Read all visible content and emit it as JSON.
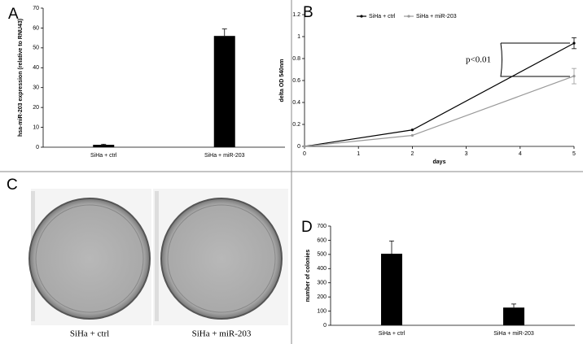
{
  "chart_data": [
    {
      "type": "bar",
      "panel": "A",
      "ylabel": "hsa-miR-203 expression (relative to RNU43)",
      "categories": [
        "SiHa + ctrl",
        "SiHa + miR-203"
      ],
      "values": [
        1.2,
        56
      ],
      "errors": [
        0.3,
        3.5
      ],
      "color": "#000000",
      "ylim": [
        0,
        70
      ],
      "yticks": [
        0,
        10,
        20,
        30,
        40,
        50,
        60,
        70
      ]
    },
    {
      "type": "line",
      "panel": "B",
      "ylabel": "delta OD 540nm",
      "xlabel": "days",
      "annotation": "p<0.01",
      "x": [
        0,
        2,
        5
      ],
      "series": [
        {
          "name": "SiHa + ctrl",
          "color": "#000000",
          "values": [
            0,
            0.15,
            0.94
          ],
          "errors": [
            0,
            0,
            0.05
          ]
        },
        {
          "name": "SiHa + miR-203",
          "color": "#999999",
          "values": [
            0,
            0.1,
            0.64
          ],
          "errors": [
            0,
            0,
            0.07
          ]
        }
      ],
      "xlim": [
        0,
        5
      ],
      "xticks": [
        0,
        1,
        2,
        3,
        4,
        5
      ],
      "ylim": [
        0,
        1.2
      ],
      "yticks": [
        0,
        0.2,
        0.4,
        0.6,
        0.8,
        1,
        1.2
      ],
      "legend": "top"
    },
    {
      "type": "bar",
      "panel": "D",
      "ylabel": "number of colonies",
      "categories": [
        "SiHa + ctrl",
        "SiHa + miR-203"
      ],
      "values": [
        505,
        125
      ],
      "errors": [
        90,
        25
      ],
      "color": "#000000",
      "ylim": [
        0,
        700
      ],
      "yticks": [
        0,
        100,
        200,
        300,
        400,
        500,
        600,
        700
      ]
    }
  ],
  "photo_panel": {
    "panel": "C",
    "captions": [
      "SiHa + ctrl",
      "SiHa + miR-203"
    ]
  }
}
